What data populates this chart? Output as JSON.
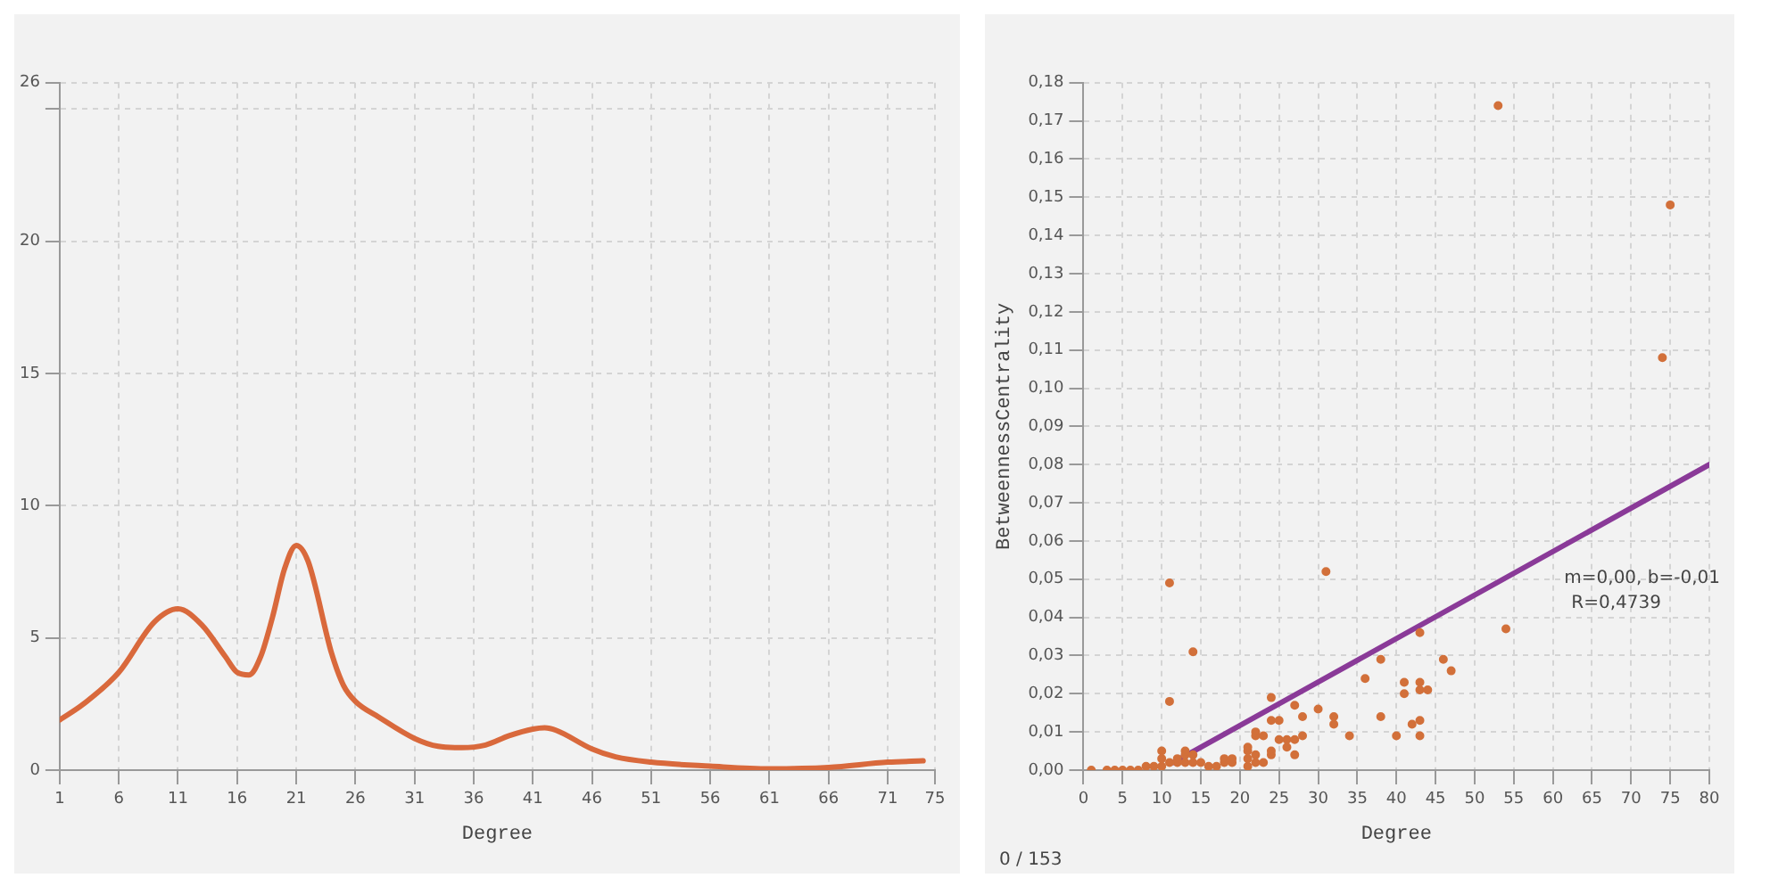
{
  "chart_data": [
    {
      "type": "line",
      "xlabel": "Degree",
      "xlim": [
        1,
        75
      ],
      "xticks": [
        1,
        6,
        11,
        16,
        21,
        26,
        31,
        36,
        41,
        46,
        51,
        56,
        61,
        66,
        71,
        75
      ],
      "ylim": [
        0,
        26
      ],
      "yticks": [
        0,
        5,
        10,
        15,
        20,
        {
          "value": 25,
          "label": null
        },
        26
      ],
      "grid": true,
      "series": [
        {
          "color": "#d9693c",
          "x": [
            1,
            3,
            6,
            9,
            11,
            13,
            15,
            16,
            17,
            18,
            19,
            20,
            21,
            22,
            24,
            25,
            26,
            28,
            31,
            33,
            35,
            37,
            39,
            41,
            42,
            43,
            46,
            48,
            51,
            56,
            61,
            66,
            71,
            74
          ],
          "values": [
            1.9,
            2.5,
            3.7,
            5.6,
            6.1,
            5.5,
            4.3,
            3.7,
            3.6,
            4.3,
            5.8,
            7.6,
            8.5,
            7.9,
            4.4,
            3.2,
            2.6,
            2.0,
            1.2,
            0.9,
            0.85,
            0.95,
            1.3,
            1.55,
            1.6,
            1.5,
            0.8,
            0.5,
            0.3,
            0.15,
            0.05,
            0.1,
            0.3,
            0.35
          ]
        }
      ]
    },
    {
      "type": "scatter",
      "xlabel": "Degree",
      "ylabel": "BetweennessCentrality",
      "xlim": [
        0,
        80
      ],
      "xticks": [
        0,
        5,
        10,
        15,
        20,
        25,
        30,
        35,
        40,
        45,
        50,
        55,
        60,
        65,
        70,
        75,
        80
      ],
      "ylim": [
        0,
        0.18
      ],
      "yticks": [
        {
          "value": 0,
          "label": "0,00"
        },
        {
          "value": 0.01,
          "label": "0,01"
        },
        {
          "value": 0.02,
          "label": "0,02"
        },
        {
          "value": 0.03,
          "label": "0,03"
        },
        {
          "value": 0.04,
          "label": "0,04"
        },
        {
          "value": 0.05,
          "label": "0,05"
        },
        {
          "value": 0.06,
          "label": "0,06"
        },
        {
          "value": 0.07,
          "label": "0,07"
        },
        {
          "value": 0.08,
          "label": "0,08"
        },
        {
          "value": 0.09,
          "label": "0,09"
        },
        {
          "value": 0.1,
          "label": "0,10"
        },
        {
          "value": 0.11,
          "label": "0,11"
        },
        {
          "value": 0.12,
          "label": "0,12"
        },
        {
          "value": 0.13,
          "label": "0,13"
        },
        {
          "value": 0.14,
          "label": "0,14"
        },
        {
          "value": 0.15,
          "label": "0,15"
        },
        {
          "value": 0.16,
          "label": "0,16"
        },
        {
          "value": 0.17,
          "label": "0,17"
        },
        {
          "value": 0.18,
          "label": "0,18"
        }
      ],
      "grid": true,
      "series": [
        {
          "type": "scatter",
          "marker": "circle",
          "color": "#d2703a",
          "x": [
            1,
            3,
            4,
            5,
            6,
            7,
            8,
            9,
            10,
            10,
            10,
            11,
            11,
            11,
            12,
            12,
            13,
            13,
            13,
            14,
            14,
            14,
            15,
            16,
            17,
            18,
            18,
            19,
            19,
            21,
            21,
            21,
            21,
            22,
            22,
            22,
            22,
            23,
            23,
            24,
            24,
            24,
            24,
            25,
            25,
            26,
            26,
            27,
            27,
            27,
            28,
            28,
            30,
            31,
            32,
            32,
            34,
            36,
            38,
            38,
            40,
            41,
            41,
            42,
            43,
            43,
            43,
            43,
            43,
            44,
            46,
            47,
            53,
            54,
            74,
            75
          ],
          "values": [
            0,
            0,
            0,
            0,
            0,
            0,
            0.001,
            0.001,
            0.001,
            0.003,
            0.005,
            0.049,
            0.018,
            0.002,
            0.002,
            0.003,
            0.004,
            0.005,
            0.002,
            0.031,
            0.004,
            0.002,
            0.002,
            0.001,
            0.001,
            0.002,
            0.003,
            0.002,
            0.003,
            0.001,
            0.003,
            0.005,
            0.006,
            0.002,
            0.004,
            0.009,
            0.01,
            0.002,
            0.009,
            0.004,
            0.005,
            0.013,
            0.019,
            0.008,
            0.013,
            0.006,
            0.008,
            0.004,
            0.008,
            0.017,
            0.009,
            0.014,
            0.016,
            0.052,
            0.012,
            0.014,
            0.009,
            0.024,
            0.014,
            0.029,
            0.009,
            0.02,
            0.023,
            0.012,
            0.009,
            0.013,
            0.021,
            0.023,
            0.036,
            0.021,
            0.029,
            0.026,
            0.174,
            0.037,
            0.108,
            0.148
          ]
        },
        {
          "type": "line",
          "marker": "none",
          "color": "#8a3a98",
          "x": [
            11.5,
            80
          ],
          "values": [
            0.002,
            0.08
          ]
        }
      ],
      "annotations": [
        "m=0,00, b=-0,01",
        "R=0,4739",
        "0 / 153"
      ]
    }
  ]
}
